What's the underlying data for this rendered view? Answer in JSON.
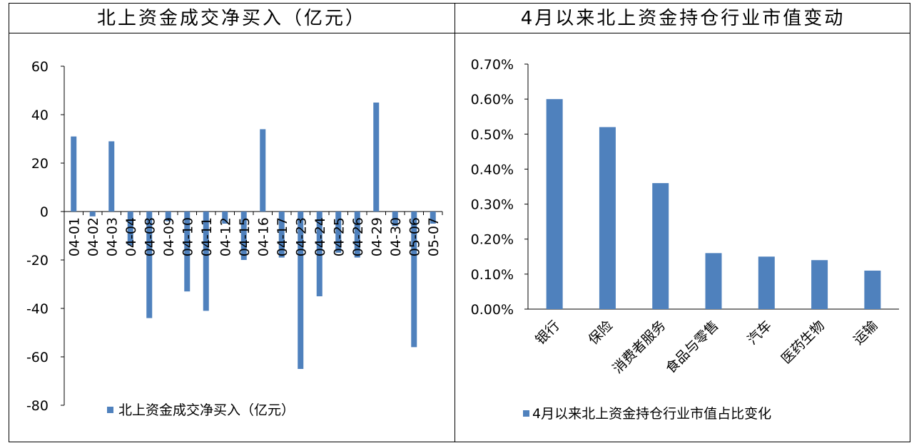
{
  "panels": {
    "left_title": "北上资金成交净买入（亿元）",
    "right_title": "4月以来北上资金持仓行业市值变动"
  },
  "colors": {
    "bar": "#4f81bd",
    "axis": "#000000",
    "frame": "#000000"
  },
  "chart_data": [
    {
      "type": "bar",
      "title": "北上资金成交净买入（亿元）",
      "categories": [
        "04-01",
        "04-02",
        "04-03",
        "04-04",
        "04-08",
        "04-09",
        "04-10",
        "04-11",
        "04-12",
        "04-15",
        "04-16",
        "04-17",
        "04-23",
        "04-24",
        "04-25",
        "04-26",
        "04-29",
        "04-30",
        "05-06",
        "05-07"
      ],
      "series": [
        {
          "name": "北上资金成交净买入（亿元）",
          "values": [
            31,
            -2,
            29,
            -14,
            -44,
            -4,
            -33,
            -41,
            -5,
            -20,
            34,
            -19,
            -65,
            -35,
            -17,
            -19,
            45,
            -6,
            -56,
            -5
          ]
        }
      ],
      "ylim": [
        -80,
        60
      ],
      "yticks": [
        "60",
        "40",
        "20",
        "0",
        "-20",
        "-40",
        "-60",
        "-80"
      ],
      "legend_position": "bottom-left",
      "grid": false
    },
    {
      "type": "bar",
      "title": "4月以来北上资金持仓行业市值变动",
      "categories": [
        "银行",
        "保险",
        "消费者服务",
        "食品与零售",
        "汽车",
        "医药生物",
        "运输"
      ],
      "series": [
        {
          "name": "4月以来北上资金持仓行业市值占比变化",
          "values": [
            0.6,
            0.52,
            0.36,
            0.16,
            0.15,
            0.14,
            0.11
          ]
        }
      ],
      "ylim": [
        0,
        0.7
      ],
      "yticks": [
        "0.70%",
        "0.60%",
        "0.50%",
        "0.40%",
        "0.30%",
        "0.20%",
        "0.10%",
        "0.00%"
      ],
      "legend_position": "bottom",
      "grid": false
    }
  ]
}
